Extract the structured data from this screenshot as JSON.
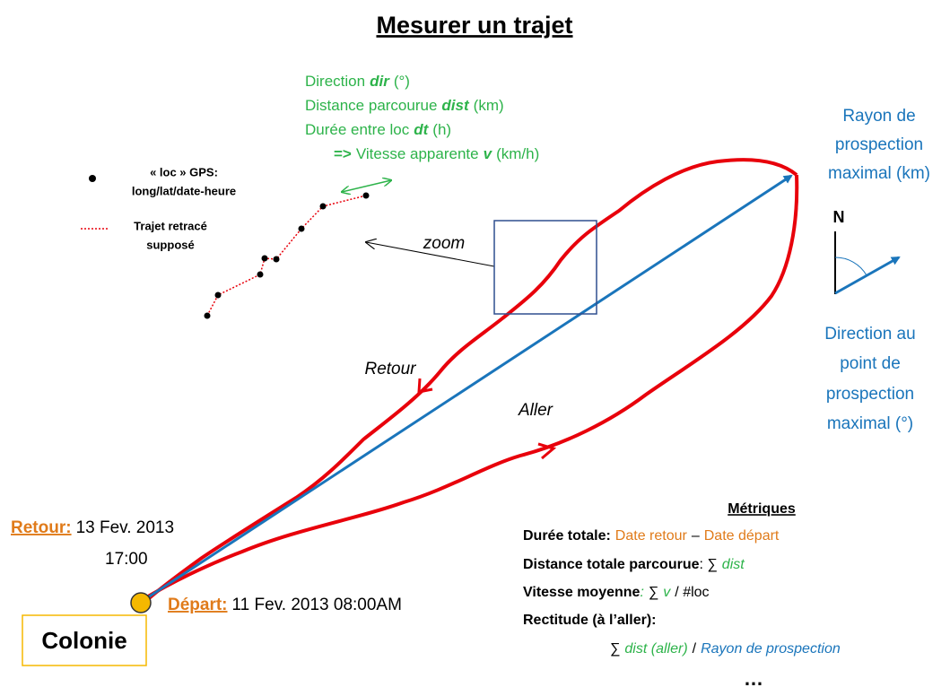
{
  "title": "Mesurer un trajet",
  "variables": [
    {
      "label": "Direction",
      "symbol": "dir",
      "unit": "(°)"
    },
    {
      "label": "Distance parcourue",
      "symbol": "dist",
      "unit": "(km)"
    },
    {
      "label": "Durée entre loc",
      "symbol": "dt",
      "unit": "(h)"
    },
    {
      "prefix": "=>",
      "label": "Vitesse apparente",
      "symbol": "v",
      "unit": "(km/h)"
    }
  ],
  "legend": {
    "loc": [
      "« loc » GPS:",
      "long/lat/date-heure"
    ],
    "track": [
      "Trajet retracé",
      "supposé"
    ]
  },
  "labels": {
    "zoom": "zoom",
    "retour": "Retour",
    "aller": "Aller",
    "north": "N"
  },
  "radius": [
    "Rayon de",
    "prospection",
    "maximal (km)"
  ],
  "direction": [
    "Direction au",
    "point de",
    "prospection",
    "maximal (°)"
  ],
  "return_info": {
    "label": "Retour:",
    "date": "13 Fev. 2013",
    "time": "17:00"
  },
  "departure_info": {
    "label": "Départ:",
    "datetime": "11 Fev. 2013 08:00AM"
  },
  "colony": "Colonie",
  "metrics": {
    "title": "Métriques",
    "total_duration": {
      "label": "Durée totale:",
      "a": "Date retour",
      "op": "–",
      "b": "Date départ"
    },
    "total_distance": {
      "label": "Distance totale parcourue",
      "op": ": ∑",
      "term": "dist"
    },
    "mean_speed": {
      "label": "Vitesse moyenne",
      "colon": ":",
      "op": "∑",
      "term": "v",
      "rest": "/ #loc"
    },
    "straightness": {
      "label": "Rectitude (à l’aller):",
      "op": "∑",
      "term": "dist (aller)",
      "div": "/",
      "denom": "Rayon de prospection"
    },
    "more": "…"
  }
}
